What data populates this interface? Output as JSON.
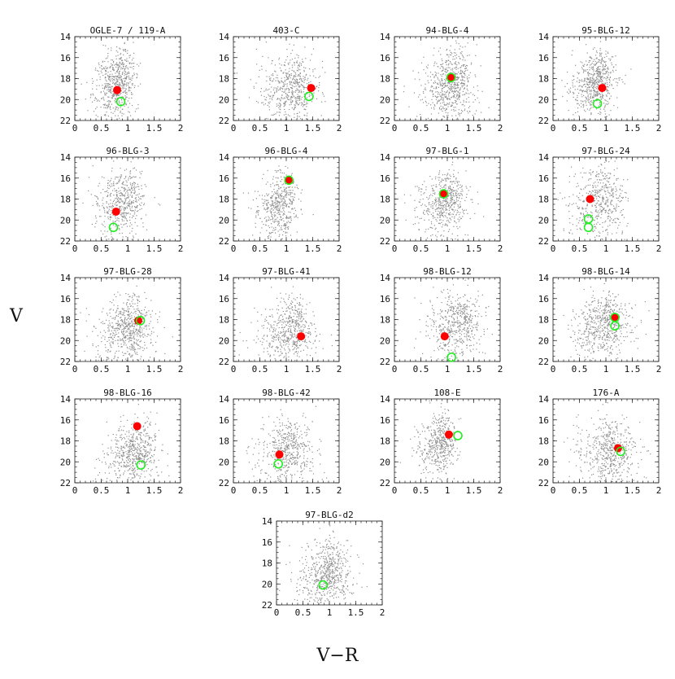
{
  "figure": {
    "xlabel": "V−R",
    "ylabel": "V"
  },
  "chart_data": {
    "type": "scatter",
    "xlim": [
      0,
      2
    ],
    "ylim": [
      22,
      14
    ],
    "x_ticks": [
      "0",
      "0.5",
      "1",
      "1.5",
      "2"
    ],
    "y_ticks": [
      "14",
      "16",
      "18",
      "20",
      "22"
    ],
    "xlabel": "V−R",
    "ylabel": "V",
    "legend_markers": {
      "lens": "filled red circle",
      "source": "open green circle"
    },
    "colors": {
      "field_stars": "#8f8f8f",
      "lens": "#ff0000",
      "source": "#22ee22"
    },
    "panels": [
      {
        "title": "OGLE-7 / 119-A",
        "lens": [
          0.8,
          19.1
        ],
        "source": [
          [
            0.87,
            20.2
          ]
        ],
        "field": {
          "cx": 0.72,
          "cy": 18.9,
          "sx": 0.22,
          "sy": 1.6,
          "n": 600
        }
      },
      {
        "title": "403-C",
        "lens": [
          1.47,
          18.9
        ],
        "source": [
          [
            1.43,
            19.7
          ]
        ],
        "field": {
          "cx": 1.05,
          "cy": 19.3,
          "sx": 0.3,
          "sy": 1.5,
          "n": 550
        }
      },
      {
        "title": "94-BLG-4",
        "lens": [
          1.07,
          17.9
        ],
        "source": [
          [
            1.07,
            17.9
          ]
        ],
        "field": {
          "cx": 0.98,
          "cy": 19.1,
          "sx": 0.28,
          "sy": 1.7,
          "n": 650
        }
      },
      {
        "title": "95-BLG-12",
        "lens": [
          0.93,
          18.9
        ],
        "source": [
          [
            0.84,
            20.4
          ]
        ],
        "field": {
          "cx": 0.72,
          "cy": 19.0,
          "sx": 0.22,
          "sy": 1.5,
          "n": 620
        }
      },
      {
        "title": "96-BLG-3",
        "lens": [
          0.78,
          19.2
        ],
        "source": [
          [
            0.73,
            20.7
          ]
        ],
        "field": {
          "cx": 0.82,
          "cy": 18.8,
          "sx": 0.25,
          "sy": 1.6,
          "n": 520
        }
      },
      {
        "title": "96-BLG-4",
        "lens": [
          1.05,
          16.2
        ],
        "source": [
          [
            1.05,
            16.2
          ]
        ],
        "field": {
          "cx": 0.78,
          "cy": 19.1,
          "sx": 0.22,
          "sy": 1.5,
          "n": 480
        }
      },
      {
        "title": "97-BLG-1",
        "lens": [
          0.93,
          17.5
        ],
        "source": [
          [
            0.93,
            17.5
          ]
        ],
        "field": {
          "cx": 0.88,
          "cy": 18.8,
          "sx": 0.25,
          "sy": 1.5,
          "n": 540
        }
      },
      {
        "title": "97-BLG-24",
        "lens": [
          0.7,
          18.0
        ],
        "source": [
          [
            0.67,
            19.9
          ],
          [
            0.67,
            20.7
          ]
        ],
        "field": {
          "cx": 0.82,
          "cy": 18.6,
          "sx": 0.3,
          "sy": 1.8,
          "n": 500
        }
      },
      {
        "title": "97-BLG-28",
        "lens": [
          1.2,
          18.1
        ],
        "source": [
          [
            1.24,
            18.1
          ]
        ],
        "field": {
          "cx": 0.92,
          "cy": 19.2,
          "sx": 0.3,
          "sy": 1.5,
          "n": 620
        }
      },
      {
        "title": "97-BLG-41",
        "lens": [
          1.28,
          19.6
        ],
        "source": [],
        "field": {
          "cx": 1.0,
          "cy": 19.4,
          "sx": 0.28,
          "sy": 1.5,
          "n": 560
        }
      },
      {
        "title": "98-BLG-12",
        "lens": [
          0.95,
          19.6
        ],
        "source": [
          [
            1.08,
            21.6
          ]
        ],
        "field": {
          "cx": 1.1,
          "cy": 18.9,
          "sx": 0.3,
          "sy": 1.6,
          "n": 560
        }
      },
      {
        "title": "98-BLG-14",
        "lens": [
          1.17,
          17.8
        ],
        "source": [
          [
            1.17,
            17.8
          ],
          [
            1.17,
            18.6
          ]
        ],
        "field": {
          "cx": 0.9,
          "cy": 19.0,
          "sx": 0.3,
          "sy": 1.6,
          "n": 600
        }
      },
      {
        "title": "98-BLG-16",
        "lens": [
          1.18,
          16.6
        ],
        "source": [
          [
            1.25,
            20.3
          ]
        ],
        "field": {
          "cx": 1.05,
          "cy": 19.6,
          "sx": 0.28,
          "sy": 1.4,
          "n": 580
        }
      },
      {
        "title": "98-BLG-42",
        "lens": [
          0.87,
          19.3
        ],
        "source": [
          [
            0.85,
            20.2
          ]
        ],
        "field": {
          "cx": 0.95,
          "cy": 19.3,
          "sx": 0.3,
          "sy": 1.5,
          "n": 520
        }
      },
      {
        "title": "108-E",
        "lens": [
          1.03,
          17.4
        ],
        "source": [
          [
            1.2,
            17.5
          ]
        ],
        "field": {
          "cx": 0.78,
          "cy": 18.6,
          "sx": 0.2,
          "sy": 1.4,
          "n": 480
        }
      },
      {
        "title": "176-A",
        "lens": [
          1.23,
          18.7
        ],
        "source": [
          [
            1.28,
            19.0
          ]
        ],
        "field": {
          "cx": 1.0,
          "cy": 19.5,
          "sx": 0.3,
          "sy": 1.5,
          "n": 560
        }
      },
      {
        "title": "97-BLG-d2",
        "lens": null,
        "source": [
          [
            0.88,
            20.1
          ]
        ],
        "field": {
          "cx": 0.88,
          "cy": 19.4,
          "sx": 0.28,
          "sy": 1.5,
          "n": 620
        }
      }
    ]
  }
}
